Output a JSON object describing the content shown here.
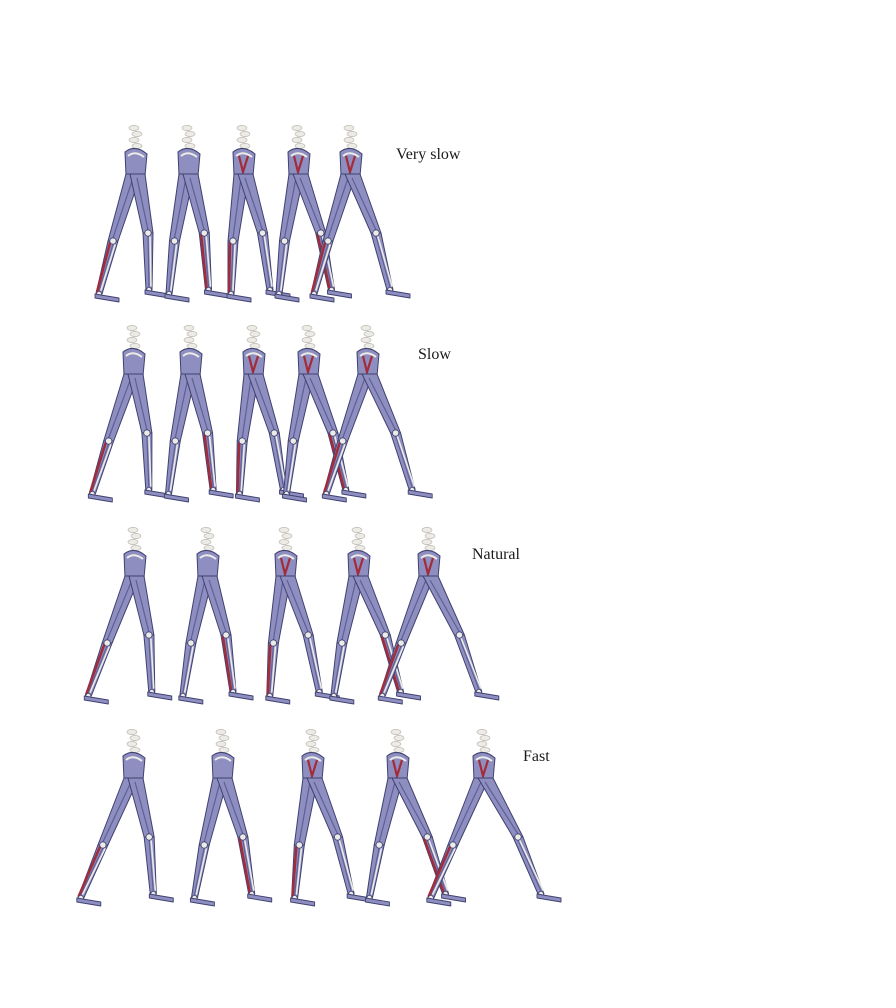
{
  "rows": [
    {
      "label": "Very slow",
      "frames": 5,
      "stride": 0.55
    },
    {
      "label": "Slow",
      "frames": 5,
      "stride": 0.68
    },
    {
      "label": "Natural",
      "frames": 5,
      "stride": 0.82
    },
    {
      "label": "Fast",
      "frames": 5,
      "stride": 1.0
    }
  ],
  "colors": {
    "muscle": "#8e8fc0",
    "muscle_dark": "#5d5f96",
    "muscle_active": "#a32c3a",
    "bone": "#ecebe6",
    "outline": "#3f4170"
  }
}
